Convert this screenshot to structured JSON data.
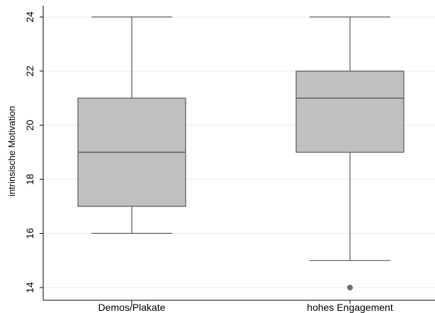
{
  "chart_data": {
    "type": "boxplot",
    "title": "",
    "xlabel": "",
    "ylabel": "intrinsische Motivation",
    "ylim": [
      13.6,
      24.4
    ],
    "yticks": [
      14,
      16,
      18,
      20,
      22,
      24
    ],
    "grid": true,
    "categories": [
      "Demos/Plakate",
      "hohes Engagement"
    ],
    "boxes": [
      {
        "category": "Demos/Plakate",
        "whisker_low": 16,
        "q1": 17,
        "median": 19,
        "q3": 21,
        "whisker_high": 24,
        "outliers": []
      },
      {
        "category": "hohes Engagement",
        "whisker_low": 15,
        "q1": 19,
        "median": 21,
        "q3": 22,
        "whisker_high": 24,
        "outliers": [
          14
        ]
      }
    ],
    "colors": {
      "box_fill": "#c0c0c0",
      "box_stroke": "#5a5a5a",
      "grid": "#e8ecef",
      "outlier": "#6e6e6e",
      "axis": "#000000"
    }
  }
}
